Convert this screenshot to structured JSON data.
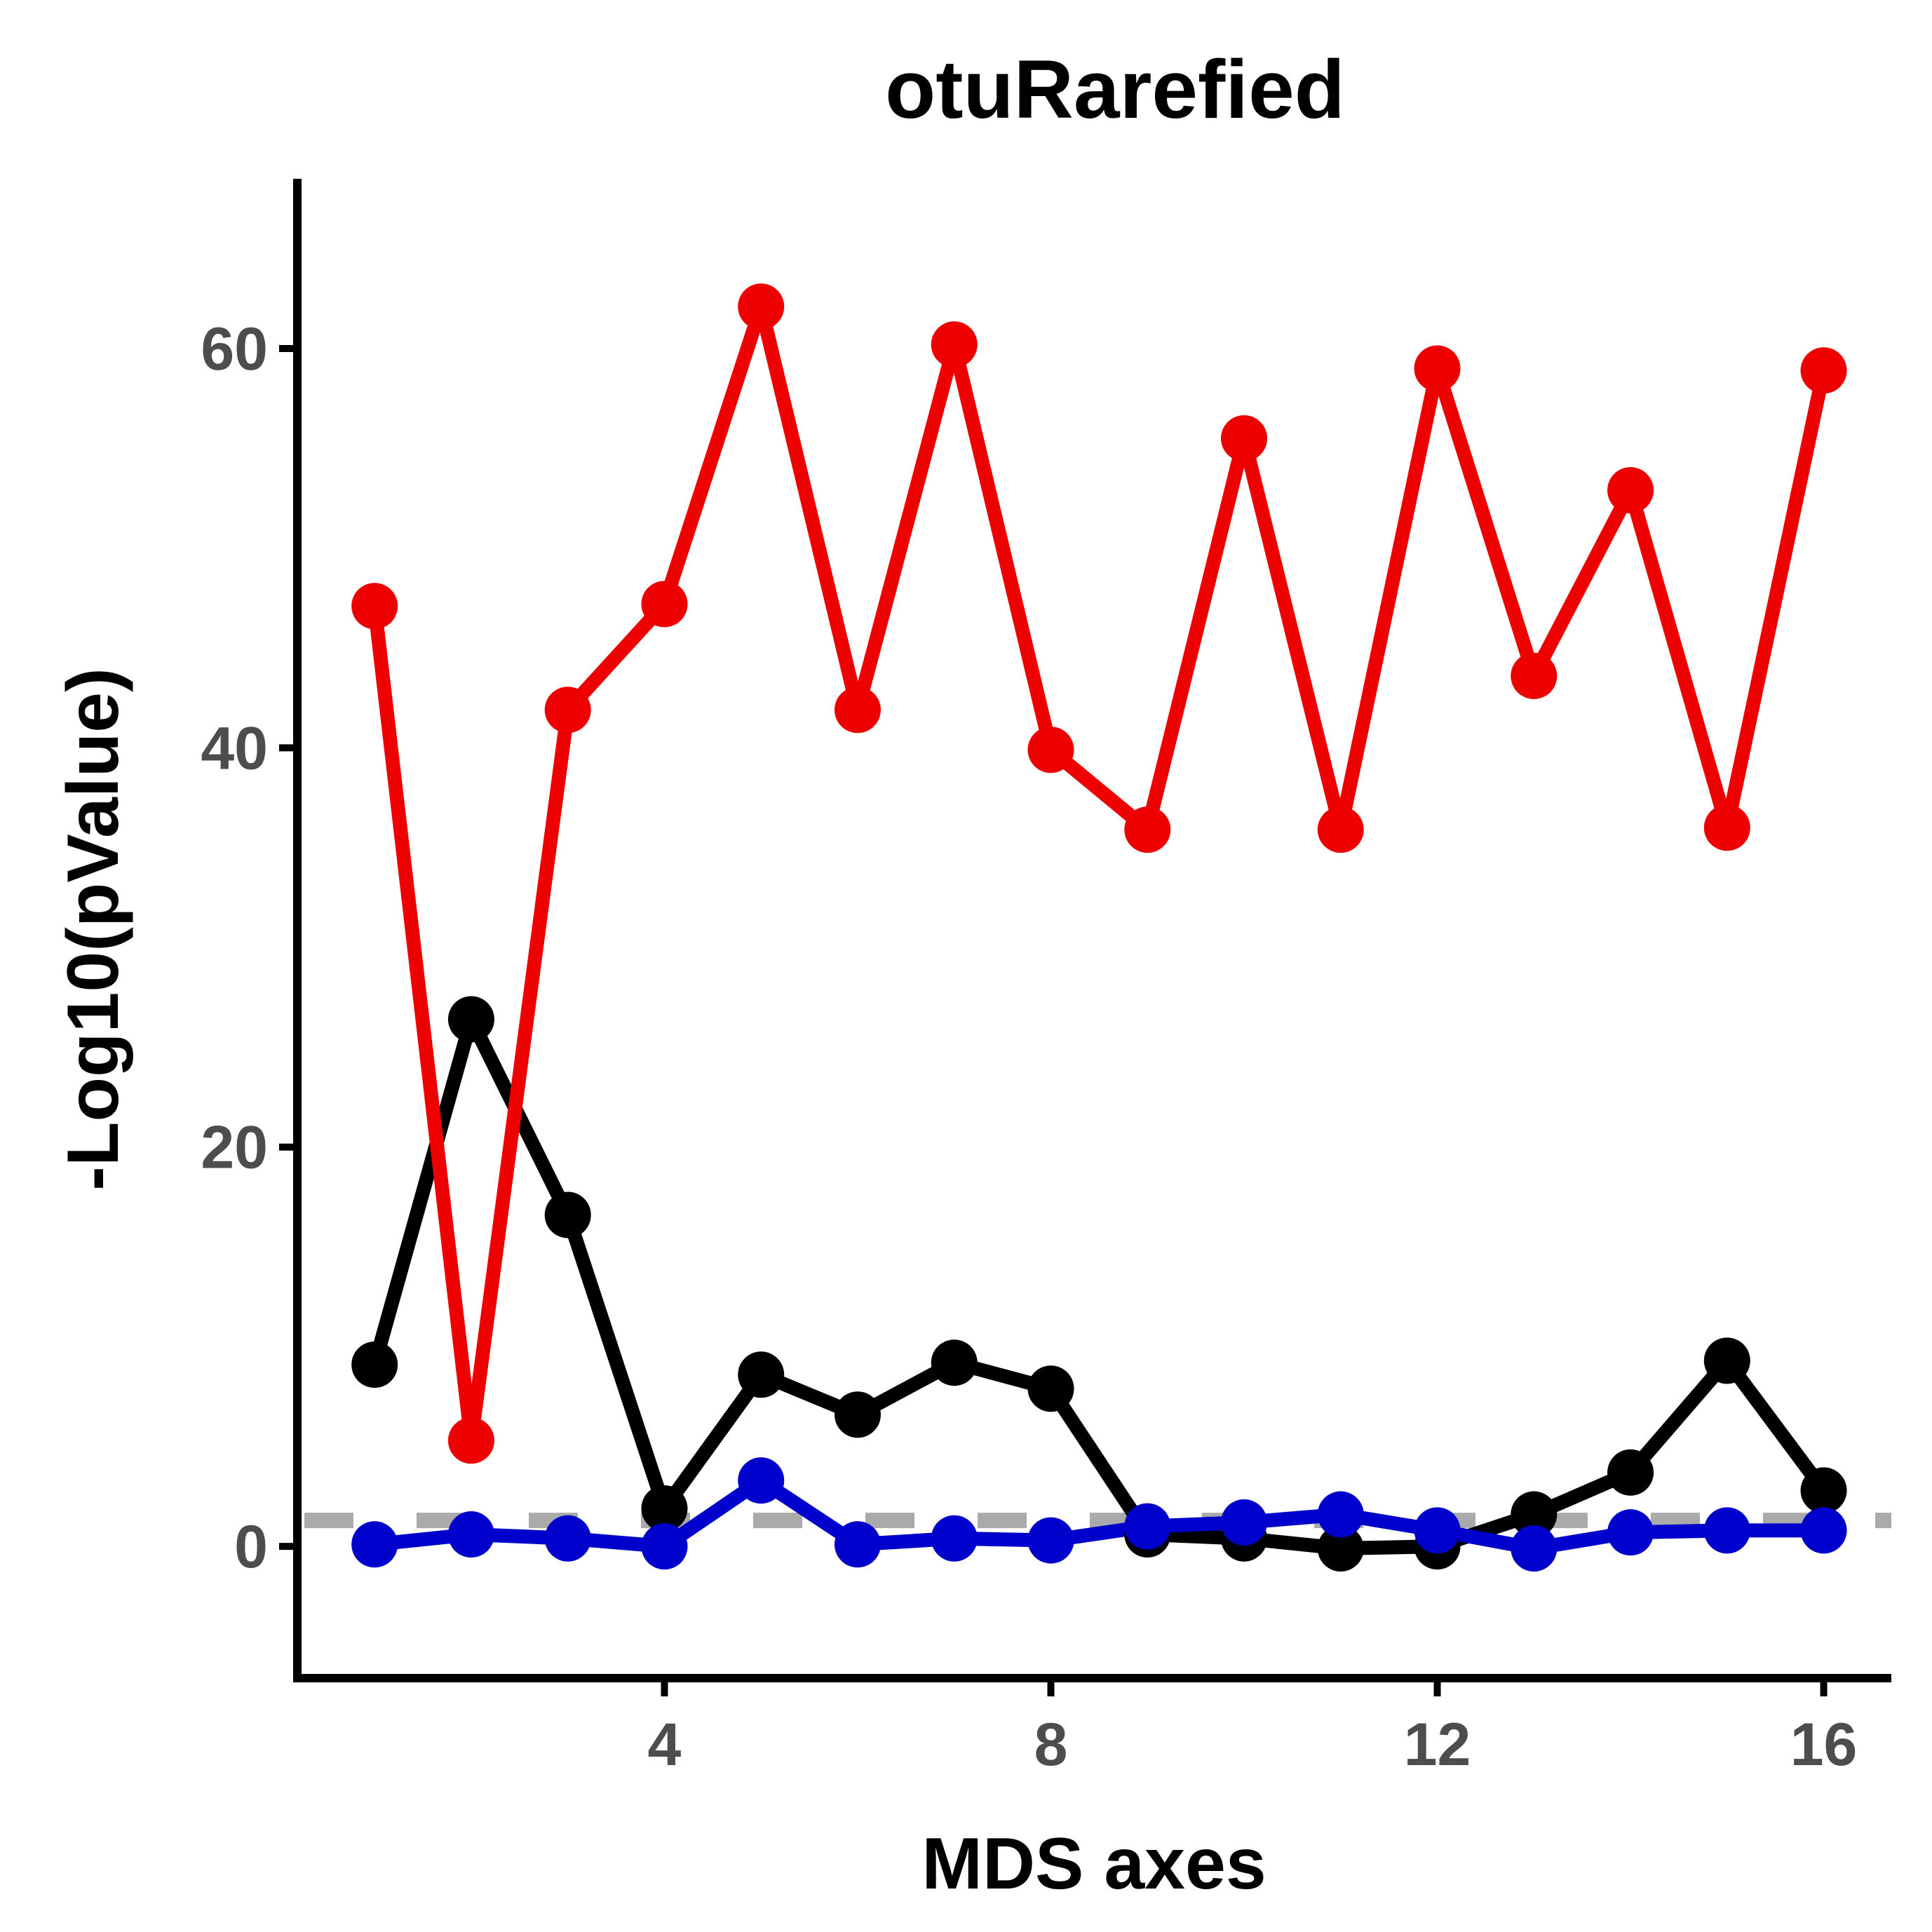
{
  "chart_data": {
    "type": "line",
    "title": "otuRarefied",
    "xlabel": "MDS axes",
    "ylabel": "-Log10(pValue)",
    "xlim": [
      0.2,
      16.7
    ],
    "ylim": [
      -6.6,
      68.5
    ],
    "x": [
      1,
      2,
      3,
      4,
      5,
      6,
      7,
      8,
      9,
      10,
      11,
      12,
      13,
      14,
      15,
      16
    ],
    "x_ticks": [
      4,
      8,
      12,
      16
    ],
    "x_tick_labels": [
      "4",
      "8",
      "12",
      "16"
    ],
    "y_ticks": [
      0,
      20,
      40,
      60
    ],
    "y_tick_labels": [
      "0",
      "20",
      "40",
      "60"
    ],
    "grid": false,
    "legend": "none",
    "reference_line": {
      "y": 1.3,
      "style": "dashed",
      "color": "#aaaaaa"
    },
    "series": [
      {
        "color": "#000000",
        "values": [
          9.1,
          26.4,
          16.6,
          1.9,
          8.6,
          6.6,
          9.2,
          7.9,
          0.6,
          0.4,
          -0.1,
          0.0,
          1.6,
          3.7,
          9.3,
          2.8
        ]
      },
      {
        "color": "#ee0000",
        "values": [
          47.1,
          5.3,
          41.9,
          47.2,
          62.1,
          41.9,
          60.2,
          39.9,
          35.9,
          55.5,
          35.9,
          59.0,
          43.6,
          52.9,
          36.0,
          58.9
        ]
      },
      {
        "color": "#0000cc",
        "values": [
          0.1,
          0.6,
          0.4,
          0.0,
          3.3,
          0.1,
          0.4,
          0.3,
          1.0,
          1.2,
          1.6,
          0.8,
          -0.1,
          0.7,
          0.8,
          0.8
        ]
      }
    ]
  }
}
